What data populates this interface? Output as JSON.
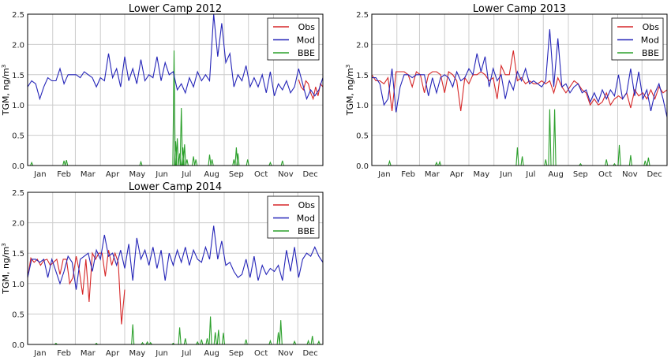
{
  "chart_data": [
    {
      "type": "line",
      "title": "Lower Camp 2012",
      "ylabel": "TGM, ng/m",
      "ylabel_sup": "3",
      "ylim": [
        0,
        2.5
      ],
      "yticks": [
        "0.0",
        "0.5",
        "1.0",
        "1.5",
        "2.0",
        "2.5"
      ],
      "months": [
        "Jan",
        "Feb",
        "Mar",
        "Apr",
        "May",
        "Jun",
        "Jul",
        "Aug",
        "Sep",
        "Oct",
        "Nov",
        "Dec"
      ],
      "grid": true,
      "legend": "top-right",
      "legend_entries": [
        "Obs",
        "Mod",
        "BBE"
      ],
      "mod": {
        "start": 0,
        "step": 5,
        "values": [
          1.3,
          1.4,
          1.35,
          1.1,
          1.3,
          1.45,
          1.4,
          1.4,
          1.6,
          1.35,
          1.5,
          1.5,
          1.5,
          1.45,
          1.55,
          1.5,
          1.45,
          1.3,
          1.45,
          1.4,
          1.85,
          1.45,
          1.6,
          1.3,
          1.8,
          1.4,
          1.6,
          1.35,
          1.75,
          1.4,
          1.5,
          1.45,
          1.8,
          1.4,
          1.7,
          1.5,
          1.55,
          1.25,
          1.35,
          1.2,
          1.45,
          1.3,
          1.55,
          1.4,
          1.5,
          1.4,
          2.5,
          1.8,
          2.35,
          1.7,
          1.85,
          1.3,
          1.5,
          1.4,
          1.65,
          1.3,
          1.45,
          1.3,
          1.5,
          1.2,
          1.55,
          1.15,
          1.35,
          1.25,
          1.4,
          1.2,
          1.3,
          1.6,
          1.35,
          1.1,
          1.25,
          1.15,
          1.25,
          1.45
        ]
      },
      "obs": {
        "start": 335,
        "step": 3,
        "values": [
          1.42,
          1.3,
          1.25,
          1.4,
          1.35,
          1.2,
          1.1,
          1.3,
          1.15,
          1.35,
          1.3
        ]
      },
      "bbe": [
        [
          5,
          0.05
        ],
        [
          45,
          0.08
        ],
        [
          48,
          0.09
        ],
        [
          140,
          0.06
        ],
        [
          181,
          1.9
        ],
        [
          183,
          0.4
        ],
        [
          185,
          0.45
        ],
        [
          188,
          0.2
        ],
        [
          190,
          0.95
        ],
        [
          192,
          0.3
        ],
        [
          194,
          0.35
        ],
        [
          197,
          0.1
        ],
        [
          205,
          0.15
        ],
        [
          208,
          0.1
        ],
        [
          225,
          0.18
        ],
        [
          228,
          0.1
        ],
        [
          255,
          0.1
        ],
        [
          258,
          0.3
        ],
        [
          260,
          0.2
        ],
        [
          272,
          0.1
        ],
        [
          300,
          0.05
        ],
        [
          315,
          0.08
        ]
      ]
    },
    {
      "type": "line",
      "title": "Lower Camp 2013",
      "ylabel": "TGM, ng/m",
      "ylabel_sup": "3",
      "ylim": [
        0,
        2.5
      ],
      "yticks": [
        "0.0",
        "0.5",
        "1.0",
        "1.5",
        "2.0",
        "2.5"
      ],
      "months": [
        "Jan",
        "Feb",
        "Mar",
        "Apr",
        "May",
        "Jun",
        "Jul",
        "Aug",
        "Sep",
        "Oct",
        "Nov",
        "Dec"
      ],
      "grid": true,
      "legend": "top-right",
      "legend_entries": [
        "Obs",
        "Mod",
        "BBE"
      ],
      "mod": {
        "start": 0,
        "step": 5,
        "values": [
          1.45,
          1.45,
          1.35,
          1.0,
          1.1,
          1.6,
          0.88,
          1.3,
          1.5,
          1.5,
          1.45,
          1.5,
          1.5,
          1.5,
          1.15,
          1.45,
          1.2,
          1.45,
          1.5,
          1.45,
          1.3,
          1.55,
          1.4,
          1.45,
          1.6,
          1.5,
          1.85,
          1.55,
          1.8,
          1.3,
          1.6,
          1.4,
          1.5,
          1.1,
          1.4,
          1.25,
          1.55,
          1.4,
          1.6,
          1.35,
          1.4,
          1.35,
          1.3,
          1.4,
          2.25,
          1.3,
          2.1,
          1.3,
          1.35,
          1.2,
          1.3,
          1.35,
          1.2,
          1.25,
          1.05,
          1.2,
          1.05,
          1.25,
          1.1,
          1.25,
          1.15,
          1.5,
          1.1,
          1.2,
          1.6,
          1.15,
          1.55,
          1.1,
          1.25,
          0.9,
          1.2,
          1.35,
          1.1,
          0.8
        ]
      },
      "obs": {
        "start": 0,
        "step": 5,
        "values": [
          1.5,
          1.4,
          1.4,
          1.35,
          1.45,
          0.9,
          1.55,
          1.55,
          1.55,
          1.5,
          1.3,
          1.55,
          1.5,
          1.2,
          1.5,
          1.55,
          1.55,
          1.5,
          1.2,
          1.55,
          1.5,
          1.4,
          0.9,
          1.45,
          1.35,
          1.5,
          1.5,
          1.55,
          1.5,
          1.4,
          1.45,
          1.1,
          1.65,
          1.5,
          1.5,
          1.9,
          1.4,
          1.45,
          1.35,
          1.4,
          1.35,
          1.35,
          1.4,
          1.35,
          1.4,
          1.2,
          1.45,
          1.3,
          1.2,
          1.3,
          1.4,
          1.35,
          1.25,
          1.2,
          1.0,
          1.1,
          1.0,
          1.05,
          1.2,
          1.0,
          1.1,
          1.15,
          1.1,
          1.2,
          0.95,
          1.25,
          1.15,
          1.2,
          1.1,
          1.25,
          1.1,
          1.3,
          1.2,
          1.25
        ]
      },
      "bbe": [
        [
          22,
          0.07
        ],
        [
          80,
          0.05
        ],
        [
          84,
          0.06
        ],
        [
          180,
          0.3
        ],
        [
          186,
          0.15
        ],
        [
          215,
          0.1
        ],
        [
          220,
          0.93
        ],
        [
          226,
          0.93
        ],
        [
          258,
          0.03
        ],
        [
          290,
          0.1
        ],
        [
          300,
          0.03
        ],
        [
          306,
          0.34
        ],
        [
          320,
          0.17
        ],
        [
          338,
          0.08
        ],
        [
          342,
          0.13
        ]
      ]
    },
    {
      "type": "line",
      "title": "Lower Camp 2014",
      "ylabel": "TGM, ng/m",
      "ylabel_sup": "3",
      "ylim": [
        0,
        2.5
      ],
      "yticks": [
        "0.0",
        "0.5",
        "1.0",
        "1.5",
        "2.0",
        "2.5"
      ],
      "months": [
        "Jan",
        "Feb",
        "Mar",
        "Apr",
        "May",
        "Jun",
        "Jul",
        "Aug",
        "Sep",
        "Oct",
        "Nov",
        "Dec"
      ],
      "grid": true,
      "legend": "top-right",
      "legend_entries": [
        "Obs",
        "Mod",
        "BBE"
      ],
      "mod": {
        "start": 0,
        "step": 5,
        "values": [
          1.1,
          1.4,
          1.4,
          1.35,
          1.4,
          1.1,
          1.4,
          1.2,
          1.0,
          1.2,
          1.45,
          1.35,
          0.9,
          1.4,
          1.45,
          1.5,
          1.2,
          1.55,
          1.4,
          1.8,
          1.45,
          1.5,
          1.3,
          1.55,
          1.25,
          1.65,
          1.05,
          1.75,
          1.4,
          1.55,
          1.3,
          1.6,
          1.25,
          1.55,
          1.05,
          1.5,
          1.3,
          1.55,
          1.35,
          1.6,
          1.3,
          1.55,
          1.4,
          1.35,
          1.6,
          1.4,
          1.95,
          1.4,
          1.7,
          1.3,
          1.35,
          1.2,
          1.1,
          1.15,
          1.4,
          1.1,
          1.45,
          1.05,
          1.3,
          1.15,
          1.25,
          1.2,
          1.3,
          1.05,
          1.55,
          1.2,
          1.6,
          1.1,
          1.4,
          1.5,
          1.45,
          1.6,
          1.45,
          1.35
        ]
      },
      "obs": {
        "start": 0,
        "step": 4,
        "values": [
          1.1,
          1.42,
          1.35,
          1.4,
          1.3,
          1.38,
          1.4,
          1.3,
          1.35,
          1.4,
          1.15,
          1.4,
          1.4,
          1.0,
          1.1,
          1.45,
          1.2,
          0.82,
          1.4,
          0.7,
          1.5,
          1.4,
          1.5,
          1.5,
          1.12,
          1.55,
          1.3,
          1.5,
          1.35,
          0.33,
          0.9
        ]
      },
      "bbe": [
        [
          35,
          0.02
        ],
        [
          85,
          0.02
        ],
        [
          130,
          0.33
        ],
        [
          142,
          0.03
        ],
        [
          148,
          0.04
        ],
        [
          152,
          0.03
        ],
        [
          180,
          0.02
        ],
        [
          188,
          0.28
        ],
        [
          195,
          0.1
        ],
        [
          210,
          0.04
        ],
        [
          215,
          0.08
        ],
        [
          222,
          0.1
        ],
        [
          226,
          0.46
        ],
        [
          232,
          0.2
        ],
        [
          236,
          0.24
        ],
        [
          242,
          0.19
        ],
        [
          270,
          0.08
        ],
        [
          300,
          0.06
        ],
        [
          310,
          0.2
        ],
        [
          313,
          0.4
        ],
        [
          330,
          0.05
        ],
        [
          347,
          0.06
        ],
        [
          352,
          0.14
        ],
        [
          360,
          0.05
        ]
      ]
    }
  ],
  "colors": {
    "obs": "#d62728",
    "mod": "#2525b8",
    "bbe": "#2ca02c",
    "grid": "#cccccc"
  }
}
